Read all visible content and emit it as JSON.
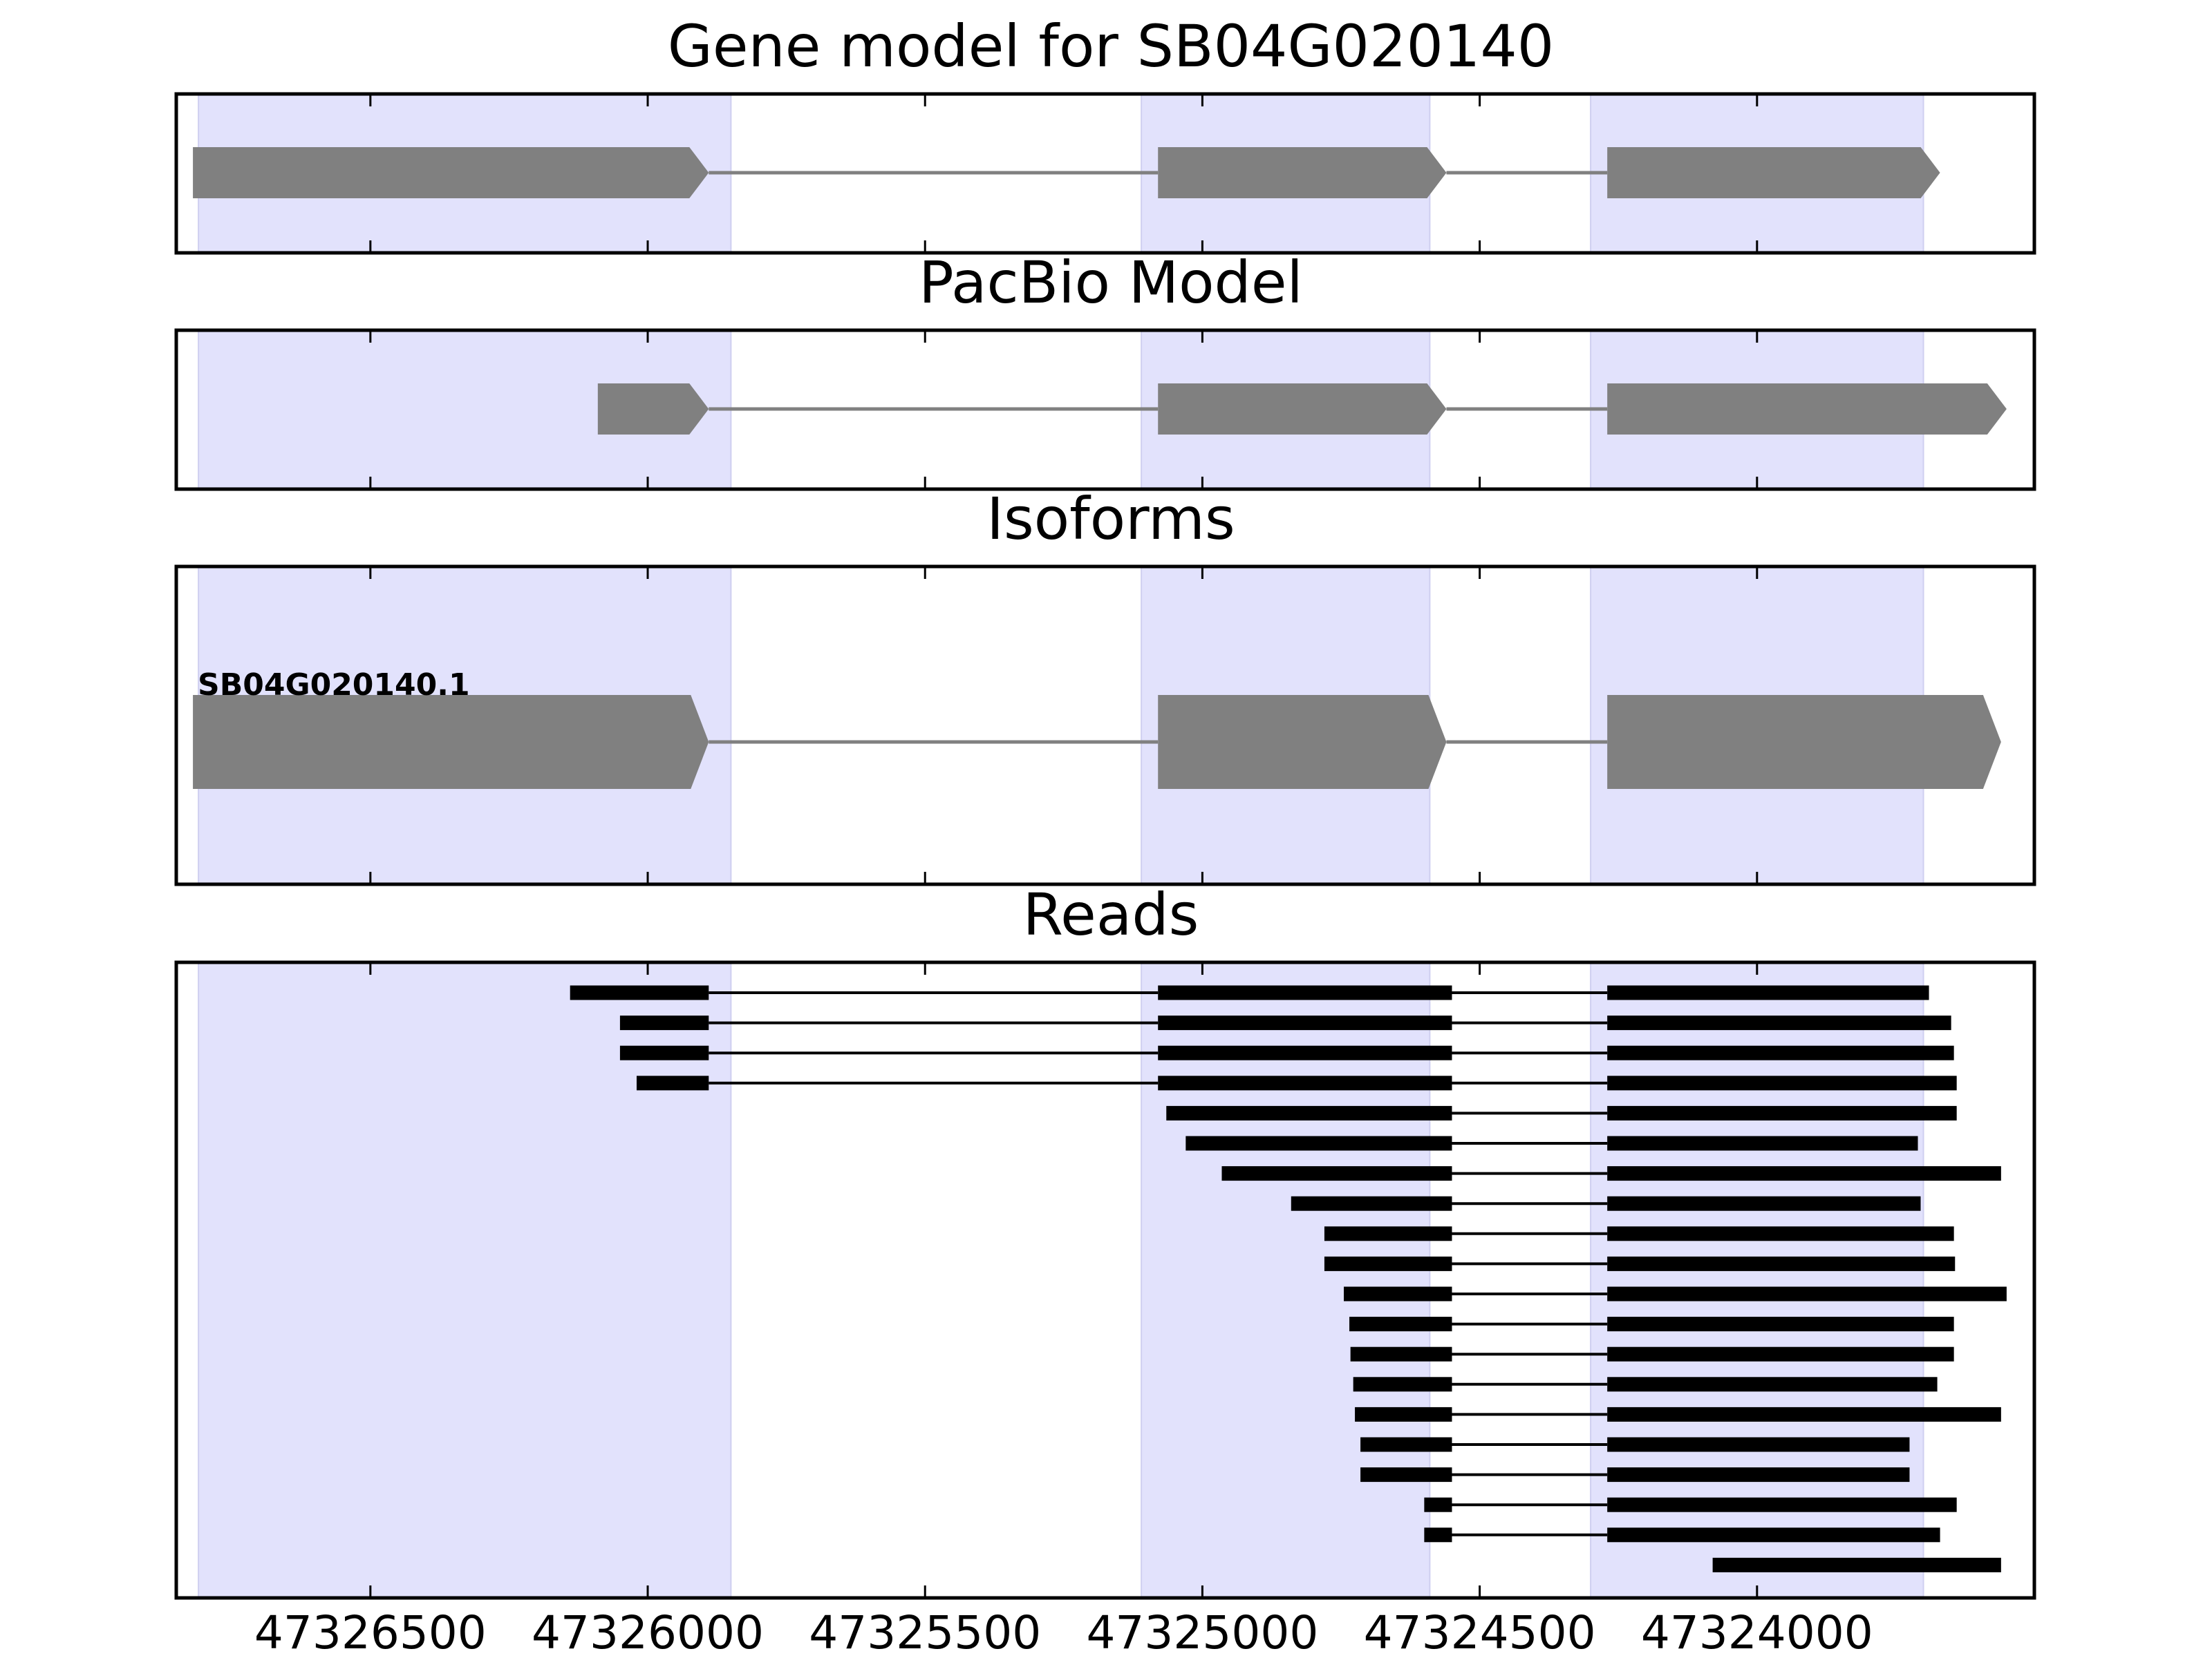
{
  "figure": {
    "title": "",
    "x_tick_labels": [
      "47326500",
      "47326000",
      "47325500",
      "47325000",
      "47324500",
      "47324000"
    ]
  },
  "colors": {
    "exon_fill": "#808080",
    "intron_line": "#808080",
    "highlight": "#e2e2fc",
    "read": "#000000",
    "axis": "#000000"
  },
  "chart_data": [
    {
      "type": "gene-model",
      "title": "Gene model for SB04G020140",
      "x_axis": "genomic coordinate (reversed)",
      "xlim": [
        47326850,
        47323500
      ],
      "highlight_regions": [
        [
          47326810,
          47325850
        ],
        [
          47325110,
          47324590
        ],
        [
          47324300,
          47323700
        ]
      ],
      "exons": [
        [
          47326820,
          47325890
        ],
        [
          47325080,
          47324560
        ],
        [
          47324270,
          47323670
        ]
      ],
      "strand": "-"
    },
    {
      "type": "gene-model",
      "title": "PacBio Model",
      "xlim": [
        47326850,
        47323500
      ],
      "highlight_regions": [
        [
          47326810,
          47325850
        ],
        [
          47325110,
          47324590
        ],
        [
          47324300,
          47323700
        ]
      ],
      "exons": [
        [
          47326090,
          47325890
        ],
        [
          47325080,
          47324560
        ],
        [
          47324270,
          47323550
        ]
      ],
      "strand": "-"
    },
    {
      "type": "gene-model",
      "title": "Isoforms",
      "xlim": [
        47326850,
        47323500
      ],
      "highlight_regions": [
        [
          47326810,
          47325850
        ],
        [
          47325110,
          47324590
        ],
        [
          47324300,
          47323700
        ]
      ],
      "isoforms": [
        {
          "name": "SB04G020140.1",
          "exons": [
            [
              47326820,
              47325890
            ],
            [
              47325080,
              47324560
            ],
            [
              47324270,
              47323560
            ]
          ],
          "strand": "-"
        }
      ]
    },
    {
      "type": "reads",
      "title": "Reads",
      "xlim": [
        47326850,
        47323500
      ],
      "highlight_regions": [
        [
          47326810,
          47325850
        ],
        [
          47325110,
          47324590
        ],
        [
          47324300,
          47323700
        ]
      ],
      "reads": [
        [
          [
            47326140,
            47325890
          ],
          [
            47325080,
            47324550
          ],
          [
            47324270,
            47323690
          ]
        ],
        [
          [
            47326050,
            47325890
          ],
          [
            47325080,
            47324550
          ],
          [
            47324270,
            47323650
          ]
        ],
        [
          [
            47326050,
            47325890
          ],
          [
            47325080,
            47324550
          ],
          [
            47324270,
            47323645
          ]
        ],
        [
          [
            47326020,
            47325890
          ],
          [
            47325080,
            47324550
          ],
          [
            47324270,
            47323640
          ]
        ],
        [
          [
            47325065,
            47324550
          ],
          [
            47324270,
            47323640
          ]
        ],
        [
          [
            47325030,
            47324550
          ],
          [
            47324270,
            47323710
          ]
        ],
        [
          [
            47324965,
            47324550
          ],
          [
            47324270,
            47323560
          ]
        ],
        [
          [
            47324840,
            47324550
          ],
          [
            47324270,
            47323705
          ]
        ],
        [
          [
            47324780,
            47324550
          ],
          [
            47324270,
            47323645
          ]
        ],
        [
          [
            47324780,
            47324550
          ],
          [
            47324270,
            47323643
          ]
        ],
        [
          [
            47324745,
            47324550
          ],
          [
            47324270,
            47323550
          ]
        ],
        [
          [
            47324735,
            47324550
          ],
          [
            47324270,
            47323645
          ]
        ],
        [
          [
            47324733,
            47324550
          ],
          [
            47324270,
            47323645
          ]
        ],
        [
          [
            47324728,
            47324550
          ],
          [
            47324270,
            47323675
          ]
        ],
        [
          [
            47324725,
            47324550
          ],
          [
            47324270,
            47323560
          ]
        ],
        [
          [
            47324715,
            47324550
          ],
          [
            47324270,
            47323725
          ]
        ],
        [
          [
            47324715,
            47324550
          ],
          [
            47324270,
            47323725
          ]
        ],
        [
          [
            47324600,
            47324550
          ],
          [
            47324270,
            47323640
          ]
        ],
        [
          [
            47324600,
            47324550
          ],
          [
            47324270,
            47323670
          ]
        ],
        [
          [
            47324080,
            47323560
          ]
        ]
      ]
    }
  ]
}
